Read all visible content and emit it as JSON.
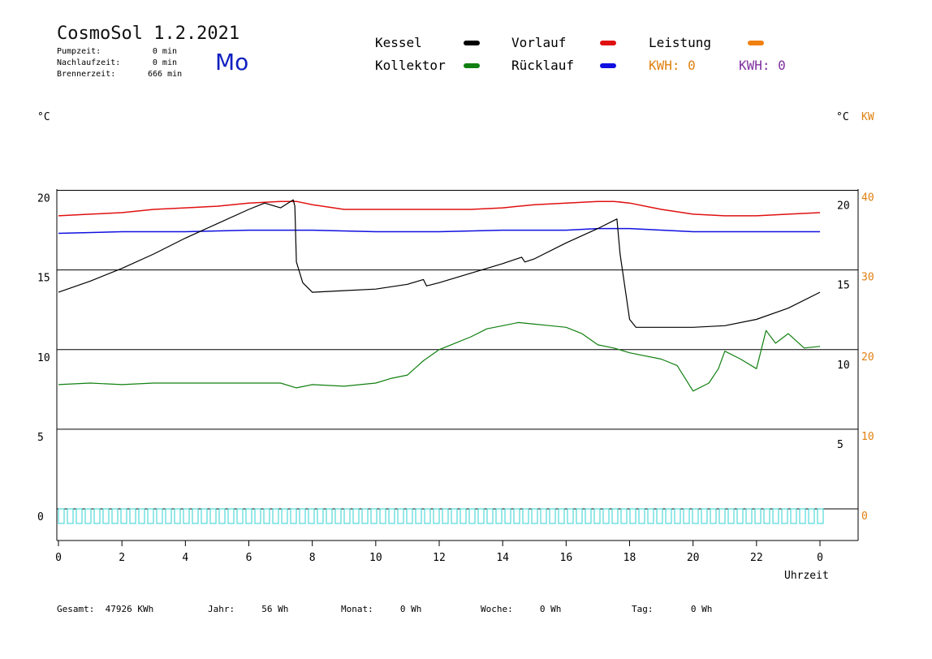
{
  "header": {
    "title": "CosmoSol 1.2.2021",
    "day": "Mo",
    "stats": [
      {
        "label": "Pumpzeit:",
        "value": "0 min"
      },
      {
        "label": "Nachlaufzeit:",
        "value": "0 min"
      },
      {
        "label": "Brennerzeit:",
        "value": "666 min"
      }
    ]
  },
  "legend": [
    {
      "label": "Kessel",
      "color": "#000000"
    },
    {
      "label": "Vorlauf",
      "color": "#e01010"
    },
    {
      "label": "Leistung",
      "color": "#f08010"
    },
    {
      "label": "Kollektor",
      "color": "#108010"
    },
    {
      "label": "Rücklauf",
      "color": "#1010e0"
    }
  ],
  "kwh": [
    {
      "label": "KWH:",
      "value": "0",
      "color": "#e08010"
    },
    {
      "label": "KWH:",
      "value": "0",
      "color": "#8030a0"
    }
  ],
  "axes": {
    "left_unit": "°C",
    "right_unit": "°C",
    "right_unit2": "KW",
    "xlabel": "Uhrzeit"
  },
  "footer": [
    {
      "label": "Gesamt:",
      "value": "47926 KWh"
    },
    {
      "label": "Jahr:",
      "value": "56 Wh"
    },
    {
      "label": "Monat:",
      "value": "0 Wh"
    },
    {
      "label": "Woche:",
      "value": "0 Wh"
    },
    {
      "label": "Tag:",
      "value": "0 Wh"
    }
  ],
  "chart_data": {
    "type": "line",
    "x_ticks": [
      "0",
      "2",
      "4",
      "6",
      "8",
      "10",
      "12",
      "14",
      "16",
      "18",
      "20",
      "22",
      "0"
    ],
    "x_range": [
      0,
      24
    ],
    "y_left_ticks": [
      "20",
      "15",
      "10",
      "5",
      "0"
    ],
    "y_right_inner_ticks": [
      "20",
      "15",
      "10",
      "5"
    ],
    "y_right_kw_ticks": [
      "40",
      "30",
      "20",
      "10",
      "0"
    ],
    "ylim": [
      -2,
      20
    ],
    "grid": true,
    "series": [
      {
        "name": "Vorlauf",
        "color": "#e01010",
        "x": [
          0,
          1,
          2,
          3,
          4,
          5,
          6,
          7,
          7.5,
          8,
          9,
          10,
          11,
          12,
          13,
          14,
          15,
          16,
          17,
          17.5,
          18,
          19,
          20,
          21,
          22,
          23,
          24
        ],
        "y": [
          18.4,
          18.5,
          18.6,
          18.8,
          18.9,
          19,
          19.2,
          19.3,
          19.3,
          19.1,
          18.8,
          18.8,
          18.8,
          18.8,
          18.8,
          18.9,
          19.1,
          19.2,
          19.3,
          19.3,
          19.2,
          18.8,
          18.5,
          18.4,
          18.4,
          18.5,
          18.6
        ]
      },
      {
        "name": "Rücklauf",
        "color": "#1010e0",
        "x": [
          0,
          2,
          4,
          6,
          8,
          10,
          12,
          14,
          16,
          17,
          18,
          20,
          22,
          24
        ],
        "y": [
          17.3,
          17.4,
          17.4,
          17.5,
          17.5,
          17.4,
          17.4,
          17.5,
          17.5,
          17.6,
          17.6,
          17.4,
          17.4,
          17.4
        ]
      },
      {
        "name": "Kessel",
        "color": "#000000",
        "x": [
          0,
          1,
          2,
          3,
          4,
          5,
          6,
          6.5,
          7,
          7.4,
          7.45,
          7.5,
          7.7,
          8,
          9,
          10,
          11,
          11.5,
          11.6,
          12,
          13,
          14,
          14.6,
          14.7,
          15,
          16,
          17,
          17.6,
          17.7,
          18,
          18.2,
          19,
          20,
          21,
          22,
          23,
          24
        ],
        "y": [
          13.6,
          14.3,
          15.1,
          16.0,
          17.0,
          17.9,
          18.8,
          19.2,
          18.9,
          19.4,
          19,
          15.5,
          14.2,
          13.6,
          13.7,
          13.8,
          14.1,
          14.4,
          14.0,
          14.2,
          14.8,
          15.4,
          15.8,
          15.5,
          15.7,
          16.7,
          17.6,
          18.2,
          16,
          11.9,
          11.4,
          11.4,
          11.4,
          11.5,
          11.9,
          12.6,
          13.6
        ]
      },
      {
        "name": "Kollektor",
        "color": "#108010",
        "x": [
          0,
          1,
          2,
          3,
          4,
          5,
          6,
          7,
          7.5,
          8,
          9,
          10,
          10.5,
          11,
          11.5,
          12,
          12.5,
          13,
          13.5,
          14,
          14.5,
          15,
          15.5,
          16,
          16.5,
          17,
          17.5,
          18,
          19,
          19.5,
          20,
          20.5,
          20.8,
          21,
          21.5,
          22,
          22.3,
          22.6,
          23,
          23.5,
          24
        ],
        "y": [
          7.8,
          7.9,
          7.8,
          7.9,
          7.9,
          7.9,
          7.9,
          7.9,
          7.6,
          7.8,
          7.7,
          7.9,
          8.2,
          8.4,
          9.3,
          10,
          10.4,
          10.8,
          11.3,
          11.5,
          11.7,
          11.6,
          11.5,
          11.4,
          11,
          10.3,
          10.1,
          9.8,
          9.4,
          9,
          7.4,
          7.9,
          8.8,
          9.9,
          9.4,
          8.8,
          11.2,
          10.4,
          11,
          10.1,
          10.2
        ]
      },
      {
        "name": "Leistung",
        "color": "#f08010",
        "x": [
          0,
          24
        ],
        "y": [
          0,
          0
        ]
      }
    ]
  }
}
